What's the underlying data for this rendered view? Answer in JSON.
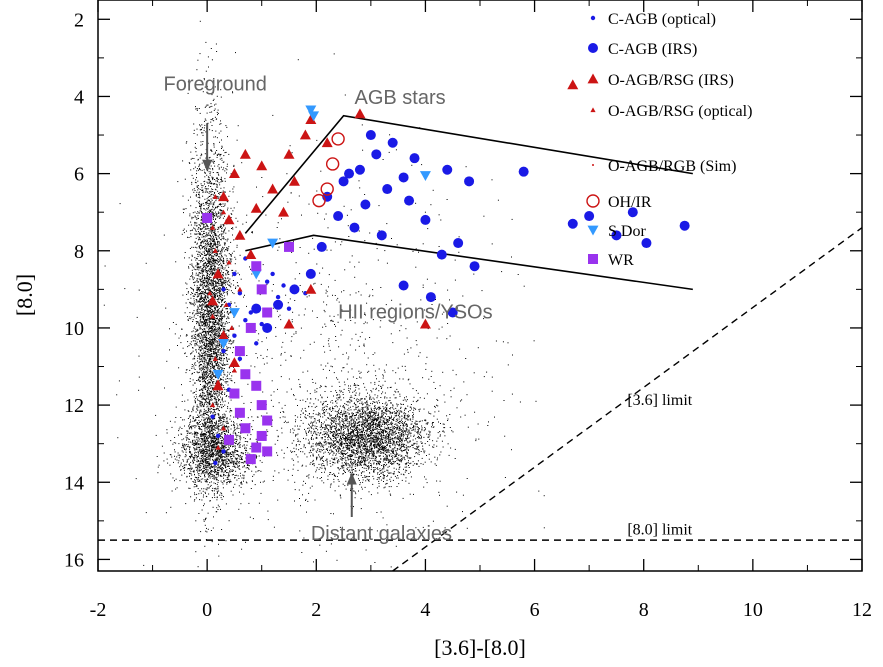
{
  "chart_data": {
    "type": "scatter",
    "xlabel": "[3.6]-[8.0]",
    "ylabel": "[8.0]",
    "xlim": [
      -2,
      12
    ],
    "ylim": [
      16.3,
      1.5
    ],
    "y_inverted": true,
    "x_ticks": [
      -2,
      0,
      2,
      4,
      6,
      8,
      10,
      12
    ],
    "y_ticks": [
      2,
      4,
      6,
      8,
      10,
      12,
      14,
      16
    ],
    "legend_position": "top-right",
    "series": [
      {
        "name": "C-AGB (optical)",
        "marker": "small-circle",
        "color": "#1a1ae6",
        "points": [
          [
            0.3,
            9.0
          ],
          [
            0.5,
            8.6
          ],
          [
            0.7,
            8.2
          ],
          [
            0.4,
            9.4
          ],
          [
            0.6,
            9.1
          ],
          [
            0.9,
            8.4
          ],
          [
            1.1,
            8.8
          ],
          [
            0.8,
            9.6
          ],
          [
            1.3,
            9.2
          ],
          [
            1.0,
            9.9
          ],
          [
            0.5,
            10.2
          ],
          [
            0.3,
            10.6
          ],
          [
            0.2,
            11.2
          ],
          [
            0.4,
            11.6
          ],
          [
            0.1,
            12.3
          ],
          [
            0.2,
            12.8
          ],
          [
            0.3,
            13.2
          ],
          [
            0.15,
            13.5
          ],
          [
            0.6,
            10.8
          ],
          [
            1.5,
            9.5
          ],
          [
            1.8,
            9.1
          ],
          [
            1.2,
            8.6
          ],
          [
            0.7,
            9.8
          ],
          [
            0.9,
            10.4
          ],
          [
            1.4,
            8.9
          ]
        ]
      },
      {
        "name": "C-AGB (IRS)",
        "marker": "large-circle",
        "color": "#1a1ae6",
        "points": [
          [
            2.2,
            6.6
          ],
          [
            2.5,
            6.2
          ],
          [
            2.8,
            5.9
          ],
          [
            3.1,
            5.5
          ],
          [
            2.4,
            7.1
          ],
          [
            2.9,
            6.8
          ],
          [
            3.3,
            6.4
          ],
          [
            3.6,
            6.1
          ],
          [
            3.0,
            5.0
          ],
          [
            3.4,
            5.2
          ],
          [
            3.8,
            5.6
          ],
          [
            4.4,
            5.9
          ],
          [
            4.8,
            6.2
          ],
          [
            2.7,
            7.4
          ],
          [
            3.2,
            7.6
          ],
          [
            4.0,
            7.2
          ],
          [
            4.3,
            8.1
          ],
          [
            4.6,
            7.8
          ],
          [
            4.9,
            8.4
          ],
          [
            3.6,
            8.9
          ],
          [
            4.1,
            9.2
          ],
          [
            4.5,
            9.6
          ],
          [
            2.1,
            7.9
          ],
          [
            1.9,
            8.6
          ],
          [
            1.6,
            9.0
          ],
          [
            1.3,
            9.4
          ],
          [
            1.1,
            10.0
          ],
          [
            0.9,
            9.5
          ],
          [
            2.6,
            6.0
          ],
          [
            3.7,
            6.7
          ],
          [
            5.8,
            5.95
          ],
          [
            6.7,
            7.3
          ],
          [
            7.0,
            7.1
          ],
          [
            7.5,
            7.6
          ],
          [
            7.8,
            7.0
          ],
          [
            8.05,
            7.8
          ],
          [
            8.75,
            7.35
          ]
        ]
      },
      {
        "name": "O-AGB/RSG (IRS)",
        "marker": "large-triangle-up",
        "color": "#cc1414",
        "points": [
          [
            0.3,
            6.6
          ],
          [
            0.5,
            6.0
          ],
          [
            0.7,
            5.5
          ],
          [
            1.0,
            5.8
          ],
          [
            1.2,
            6.4
          ],
          [
            0.4,
            7.2
          ],
          [
            0.6,
            7.6
          ],
          [
            0.9,
            6.9
          ],
          [
            1.5,
            5.5
          ],
          [
            1.8,
            5.0
          ],
          [
            1.9,
            4.6
          ],
          [
            2.2,
            5.2
          ],
          [
            2.8,
            4.45
          ],
          [
            0.2,
            8.6
          ],
          [
            0.1,
            9.3
          ],
          [
            0.3,
            10.2
          ],
          [
            0.5,
            10.9
          ],
          [
            0.2,
            11.5
          ],
          [
            1.6,
            6.2
          ],
          [
            1.4,
            7.0
          ],
          [
            0.8,
            8.1
          ],
          [
            1.9,
            9.0
          ],
          [
            1.5,
            9.9
          ],
          [
            6.7,
            3.7
          ],
          [
            4.0,
            9.9
          ]
        ]
      },
      {
        "name": "O-AGB/RSG (optical)",
        "marker": "small-triangle-up",
        "color": "#cc1414",
        "points": [
          [
            0.1,
            7.4
          ],
          [
            0.15,
            8.0
          ],
          [
            0.2,
            8.6
          ],
          [
            0.05,
            9.1
          ],
          [
            0.1,
            9.7
          ],
          [
            0.25,
            10.3
          ],
          [
            0.15,
            10.8
          ],
          [
            0.2,
            11.4
          ],
          [
            0.1,
            12.0
          ],
          [
            0.3,
            12.6
          ],
          [
            0.2,
            13.1
          ],
          [
            0.35,
            9.4
          ],
          [
            0.4,
            8.3
          ],
          [
            0.3,
            7.0
          ],
          [
            0.45,
            10.0
          ],
          [
            0.5,
            11.1
          ],
          [
            0.15,
            6.6
          ],
          [
            0.6,
            9.0
          ]
        ]
      },
      {
        "name": "O-AGB/RGB (Sim)",
        "marker": "dot",
        "color": "#cc1414",
        "points": []
      },
      {
        "name": "OH/IR",
        "marker": "open-circle",
        "color": "#cc1414",
        "points": [
          [
            2.4,
            5.1
          ],
          [
            2.3,
            5.75
          ],
          [
            2.05,
            6.7
          ],
          [
            2.2,
            6.4
          ]
        ]
      },
      {
        "name": "S Dor",
        "marker": "triangle-down",
        "color": "#3399ff",
        "points": [
          [
            1.9,
            4.35
          ],
          [
            1.95,
            4.5
          ],
          [
            4.0,
            6.05
          ],
          [
            0.9,
            8.6
          ],
          [
            1.2,
            7.8
          ],
          [
            0.5,
            9.6
          ],
          [
            0.3,
            10.4
          ],
          [
            0.2,
            11.2
          ]
        ]
      },
      {
        "name": "WR",
        "marker": "square",
        "color": "#9933ee",
        "points": [
          [
            0.0,
            7.15
          ],
          [
            1.5,
            7.9
          ],
          [
            0.9,
            8.4
          ],
          [
            1.0,
            9.0
          ],
          [
            1.1,
            9.6
          ],
          [
            0.8,
            10.0
          ],
          [
            0.6,
            10.6
          ],
          [
            0.7,
            11.2
          ],
          [
            0.5,
            11.7
          ],
          [
            0.9,
            11.5
          ],
          [
            1.0,
            12.0
          ],
          [
            1.1,
            12.4
          ],
          [
            0.7,
            12.6
          ],
          [
            1.0,
            12.8
          ],
          [
            1.1,
            13.2
          ],
          [
            0.8,
            13.4
          ],
          [
            0.9,
            13.1
          ],
          [
            0.6,
            12.2
          ],
          [
            0.4,
            12.9
          ]
        ]
      }
    ],
    "annotations": [
      {
        "text": "Foreground",
        "x": -0.8,
        "y": 3.85
      },
      {
        "text": "AGB stars",
        "x": 2.7,
        "y": 4.2
      },
      {
        "text": "HII regions/YSOs",
        "x": 2.4,
        "y": 9.75
      },
      {
        "text": "Distant galaxies",
        "x": 1.9,
        "y": 15.5
      },
      {
        "text": "[3.6] limit",
        "x": 7.7,
        "y": 12.0
      },
      {
        "text": "[8.0] limit",
        "x": 7.7,
        "y": 15.35
      }
    ],
    "arrows": [
      {
        "name": "foreground",
        "from": [
          0.0,
          4.7
        ],
        "to": [
          0.0,
          5.9
        ]
      },
      {
        "name": "distant-galaxies",
        "from": [
          2.65,
          14.9
        ],
        "to": [
          2.65,
          13.8
        ]
      }
    ],
    "agb_region_lines": [
      [
        [
          0.7,
          7.55
        ],
        [
          2.5,
          4.5
        ],
        [
          8.9,
          6.0
        ]
      ],
      [
        [
          0.7,
          8.0
        ],
        [
          1.95,
          7.6
        ],
        [
          8.9,
          9.0
        ]
      ]
    ],
    "limit_lines": [
      {
        "name": "[3.6] limit",
        "points": [
          [
            3.4,
            16.3
          ],
          [
            12.0,
            7.4
          ]
        ]
      },
      {
        "name": "[8.0] limit",
        "points": [
          [
            -2.0,
            15.5
          ],
          [
            12.0,
            15.5
          ]
        ]
      }
    ],
    "density_clouds": [
      {
        "name": "main-branch",
        "cx": 0.05,
        "cy": 9.5,
        "sx": 0.18,
        "sy": 2.2,
        "n": 4200
      },
      {
        "name": "branch-base",
        "cx": 0.15,
        "cy": 13.2,
        "sx": 0.35,
        "sy": 0.45,
        "n": 1500
      },
      {
        "name": "distant-galaxies",
        "cx": 2.9,
        "cy": 12.8,
        "sx": 0.55,
        "sy": 0.55,
        "n": 3200
      },
      {
        "name": "field",
        "cx": 2.2,
        "cy": 11.0,
        "sx": 1.6,
        "sy": 2.4,
        "n": 900
      }
    ]
  }
}
